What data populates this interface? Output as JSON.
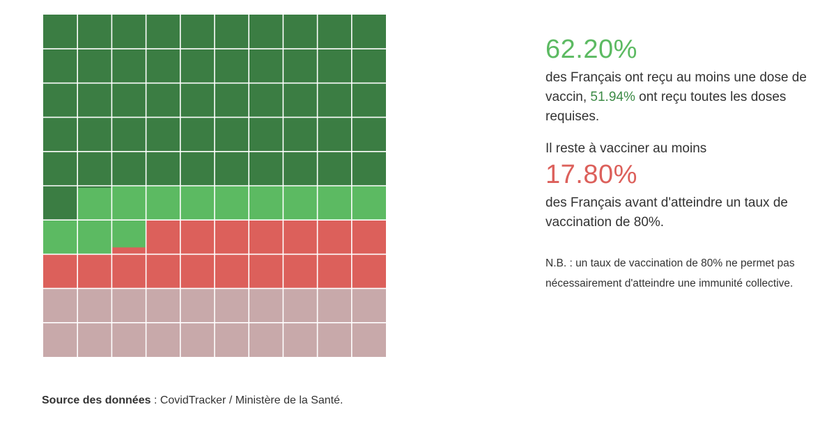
{
  "chart_data": {
    "type": "waffle",
    "total_cells": 100,
    "segments": [
      {
        "value": 51.94,
        "color": "#3b7d43"
      },
      {
        "value": 10.26,
        "color": "#5cba62"
      },
      {
        "value": 17.8,
        "color": "#dc605b"
      },
      {
        "value": 20.0,
        "color": "#c8a9aa"
      }
    ]
  },
  "stats": {
    "first_dose_pct": "62.20%",
    "first_dose_text": "des Français ont reçu au moins une dose de vaccin,",
    "full_pct": "51.94%",
    "full_text": "ont reçu toutes les doses requises.",
    "remaining_intro": "Il reste à vacciner au moins",
    "remaining_pct": "17.80%",
    "remaining_text": "des Français avant d'atteindre un taux de vaccination de 80%.",
    "note": "N.B. : un taux de vaccination de 80% ne permet pas nécessairement d'atteindre une immunité collective."
  },
  "source": {
    "label": "Source des données",
    "separator": " : ",
    "text": "CovidTracker / Ministère de la Santé."
  },
  "colors": {
    "full": "#3b7d43",
    "first_dose": "#5cba62",
    "remaining": "#dc605b",
    "rest": "#c8a9aa",
    "accent_text": "#3b8a45"
  }
}
